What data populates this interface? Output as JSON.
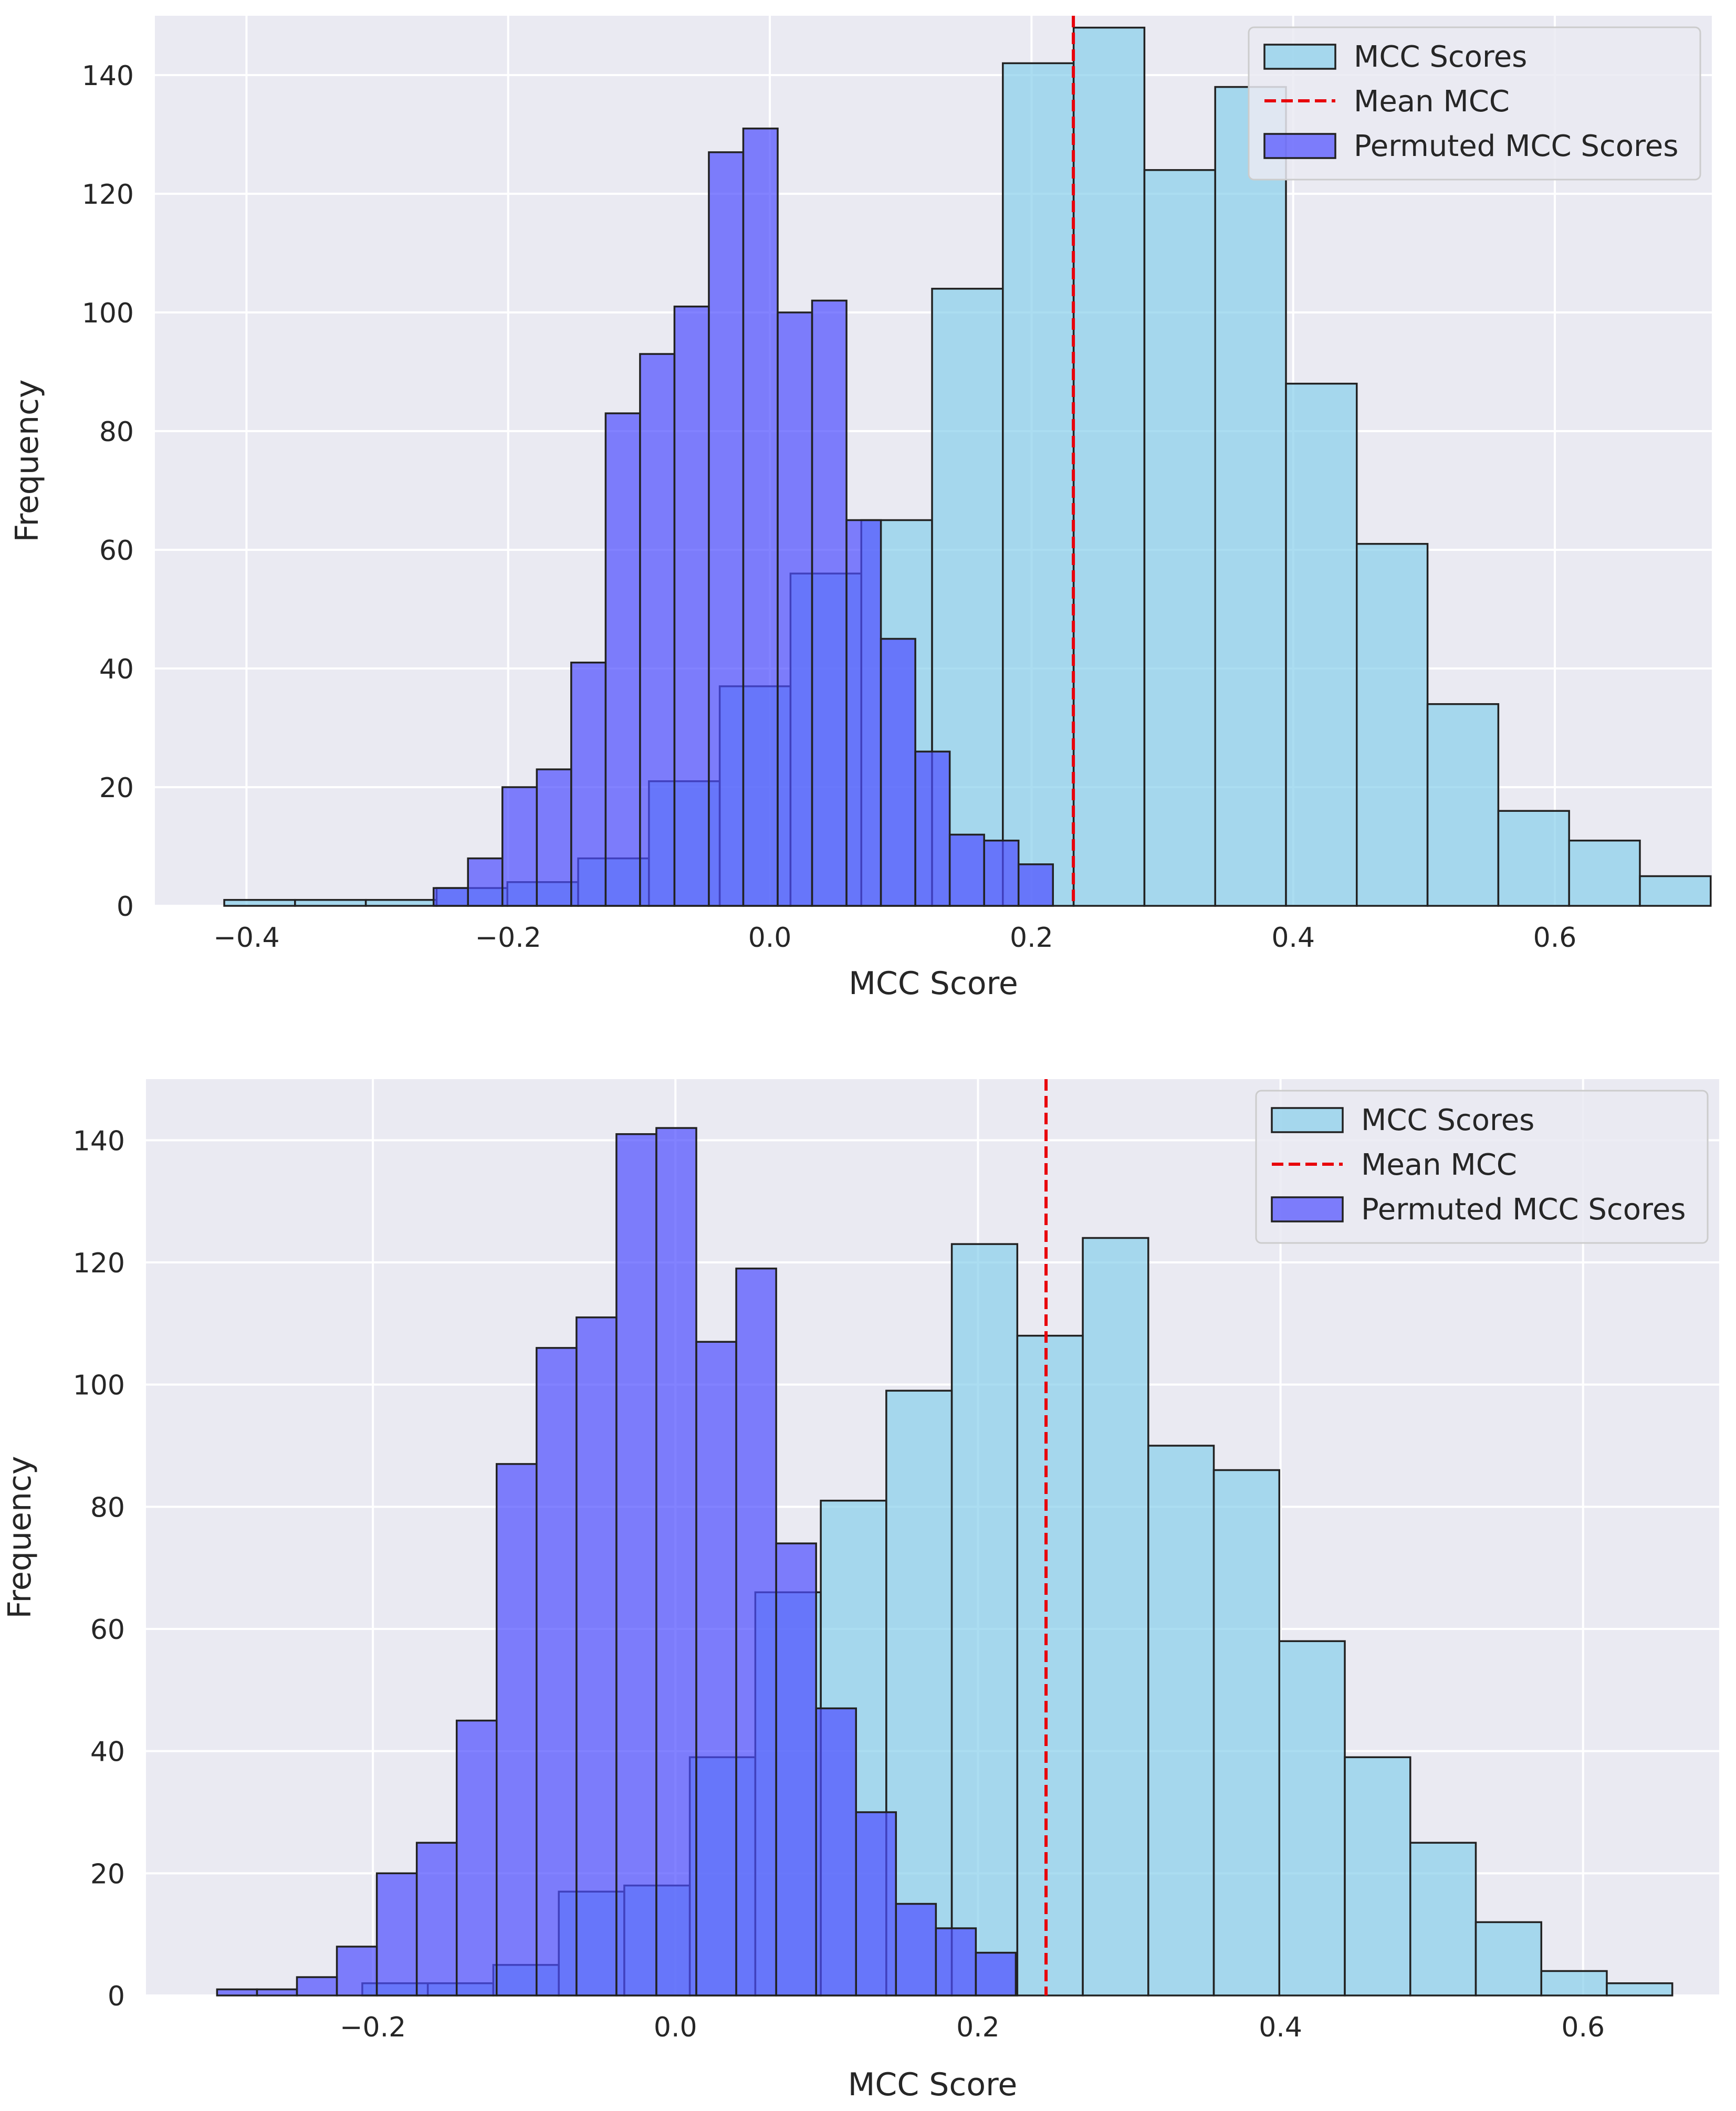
{
  "colors": {
    "panel_bg": "#eaeaf2",
    "grid": "#ffffff",
    "mcc_fill": "#87ceeb",
    "perm_fill": "#4d4dff",
    "bar_edge": "#222222",
    "mean_line": "#e8000b",
    "text": "#262626"
  },
  "chart_data": [
    {
      "type": "bar",
      "xlabel": "MCC Score",
      "ylabel": "Frequency",
      "xlim": [
        -0.47,
        0.72
      ],
      "ylim": [
        0,
        150
      ],
      "xticks": [
        -0.4,
        -0.2,
        0.0,
        0.2,
        0.4,
        0.6
      ],
      "xtick_labels": [
        "−0.4",
        "−0.2",
        "0.0",
        "0.2",
        "0.4",
        "0.6"
      ],
      "yticks": [
        0,
        20,
        40,
        60,
        80,
        100,
        120,
        140
      ],
      "ytick_labels": [
        "0",
        "20",
        "40",
        "60",
        "80",
        "100",
        "120",
        "140"
      ],
      "grid": true,
      "legend_position": "top-right",
      "legend": [
        "MCC Scores",
        "Mean MCC",
        "Permuted MCC Scores"
      ],
      "mean_mcc": 0.232,
      "series": [
        {
          "name": "MCC Scores",
          "bin_start": -0.417,
          "bin_width": 0.0541,
          "values": [
            1,
            1,
            1,
            3,
            4,
            8,
            21,
            37,
            56,
            65,
            104,
            142,
            148,
            124,
            138,
            88,
            61,
            34,
            16,
            11,
            5
          ]
        },
        {
          "name": "Permuted MCC Scores",
          "bin_start": -0.257,
          "bin_width": 0.0263,
          "values": [
            3,
            8,
            20,
            23,
            41,
            83,
            93,
            101,
            127,
            131,
            100,
            102,
            65,
            45,
            26,
            12,
            11,
            7
          ]
        }
      ]
    },
    {
      "type": "bar",
      "xlabel": "MCC Score",
      "ylabel": "Frequency",
      "xlim": [
        -0.35,
        0.69
      ],
      "ylim": [
        0,
        150
      ],
      "xticks": [
        -0.2,
        0.0,
        0.2,
        0.4,
        0.6
      ],
      "xtick_labels": [
        "−0.2",
        "0.0",
        "0.2",
        "0.4",
        "0.6"
      ],
      "yticks": [
        0,
        20,
        40,
        60,
        80,
        100,
        120,
        140
      ],
      "ytick_labels": [
        "0",
        "20",
        "40",
        "60",
        "80",
        "100",
        "120",
        "140"
      ],
      "grid": true,
      "legend_position": "top-right",
      "legend": [
        "MCC Scores",
        "Mean MCC",
        "Permuted MCC Scores"
      ],
      "mean_mcc": 0.245,
      "series": [
        {
          "name": "MCC Scores",
          "bin_start": -0.207,
          "bin_width": 0.0433,
          "values": [
            2,
            2,
            5,
            17,
            18,
            39,
            66,
            81,
            99,
            123,
            108,
            124,
            90,
            86,
            58,
            39,
            25,
            12,
            4,
            2
          ]
        },
        {
          "name": "Permuted MCC Scores",
          "bin_start": -0.303,
          "bin_width": 0.0264,
          "values": [
            1,
            1,
            3,
            8,
            20,
            25,
            45,
            87,
            106,
            111,
            141,
            142,
            107,
            119,
            74,
            47,
            30,
            15,
            11,
            7
          ]
        }
      ]
    }
  ]
}
